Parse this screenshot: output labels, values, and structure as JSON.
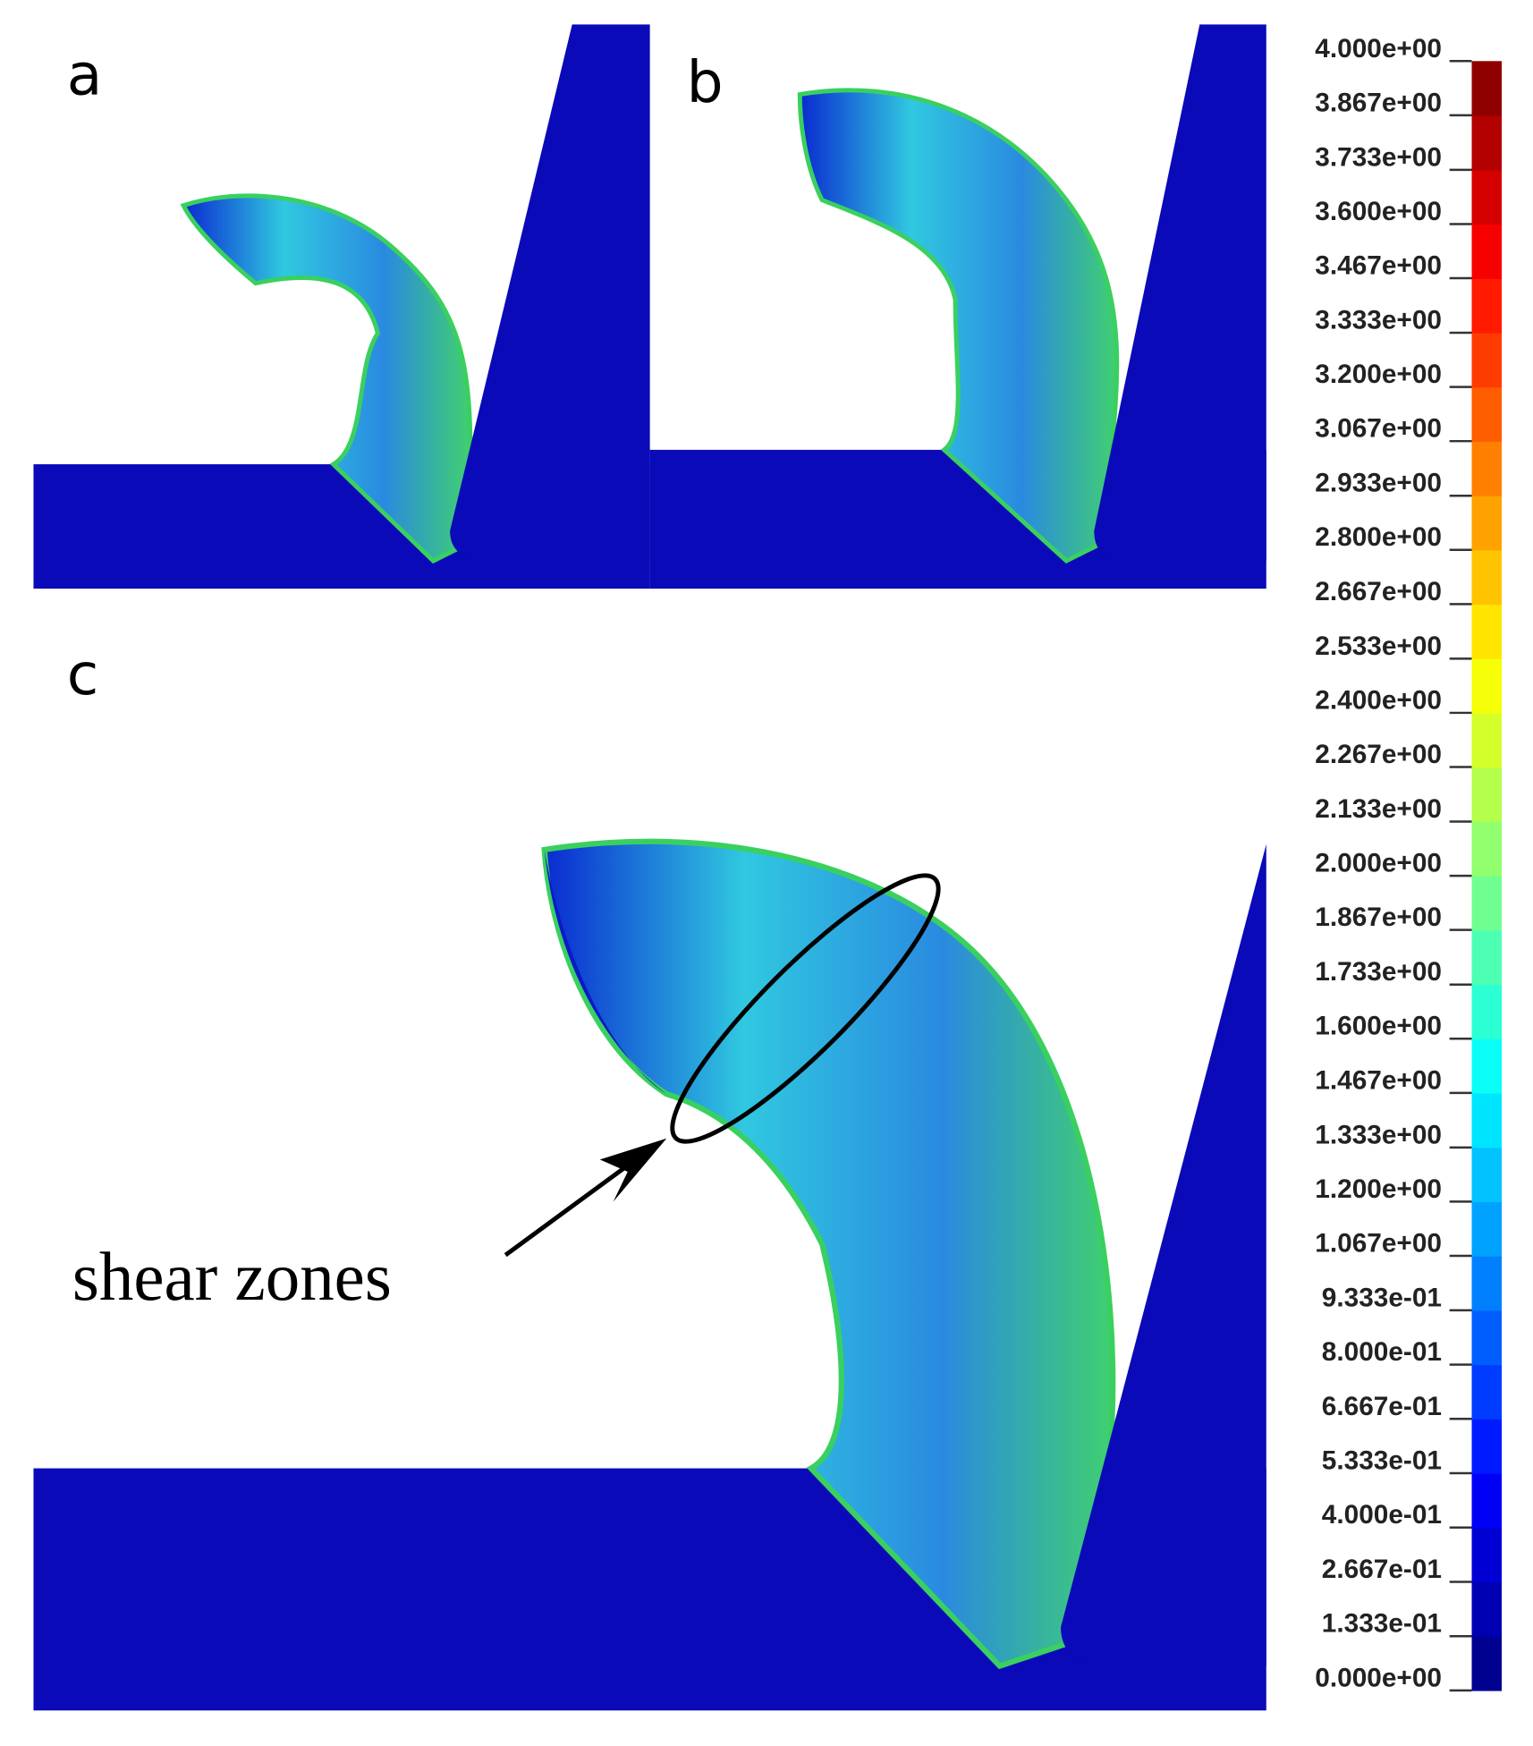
{
  "panels": [
    {
      "label": "a"
    },
    {
      "label": "b"
    },
    {
      "label": "c"
    }
  ],
  "annotation": "shear zones",
  "colorbar": {
    "ticks": [
      {
        "value": 4.0,
        "label": "4.000e+00"
      },
      {
        "value": 3.867,
        "label": "3.867e+00"
      },
      {
        "value": 3.733,
        "label": "3.733e+00"
      },
      {
        "value": 3.6,
        "label": "3.600e+00"
      },
      {
        "value": 3.467,
        "label": "3.467e+00"
      },
      {
        "value": 3.333,
        "label": "3.333e+00"
      },
      {
        "value": 3.2,
        "label": "3.200e+00"
      },
      {
        "value": 3.067,
        "label": "3.067e+00"
      },
      {
        "value": 2.933,
        "label": "2.933e+00"
      },
      {
        "value": 2.8,
        "label": "2.800e+00"
      },
      {
        "value": 2.667,
        "label": "2.667e+00"
      },
      {
        "value": 2.533,
        "label": "2.533e+00"
      },
      {
        "value": 2.4,
        "label": "2.400e+00"
      },
      {
        "value": 2.267,
        "label": "2.267e+00"
      },
      {
        "value": 2.133,
        "label": "2.133e+00"
      },
      {
        "value": 2.0,
        "label": "2.000e+00"
      },
      {
        "value": 1.867,
        "label": "1.867e+00"
      },
      {
        "value": 1.733,
        "label": "1.733e+00"
      },
      {
        "value": 1.6,
        "label": "1.600e+00"
      },
      {
        "value": 1.467,
        "label": "1.467e+00"
      },
      {
        "value": 1.333,
        "label": "1.333e+00"
      },
      {
        "value": 1.2,
        "label": "1.200e+00"
      },
      {
        "value": 1.067,
        "label": "1.067e+00"
      },
      {
        "value": 0.9333,
        "label": "9.333e-01"
      },
      {
        "value": 0.8,
        "label": "8.000e-01"
      },
      {
        "value": 0.6667,
        "label": "6.667e-01"
      },
      {
        "value": 0.5333,
        "label": "5.333e-01"
      },
      {
        "value": 0.4,
        "label": "4.000e-01"
      },
      {
        "value": 0.2667,
        "label": "2.667e-01"
      },
      {
        "value": 0.1333,
        "label": "1.333e-01"
      },
      {
        "value": 0.0,
        "label": "0.000e+00"
      }
    ]
  }
}
